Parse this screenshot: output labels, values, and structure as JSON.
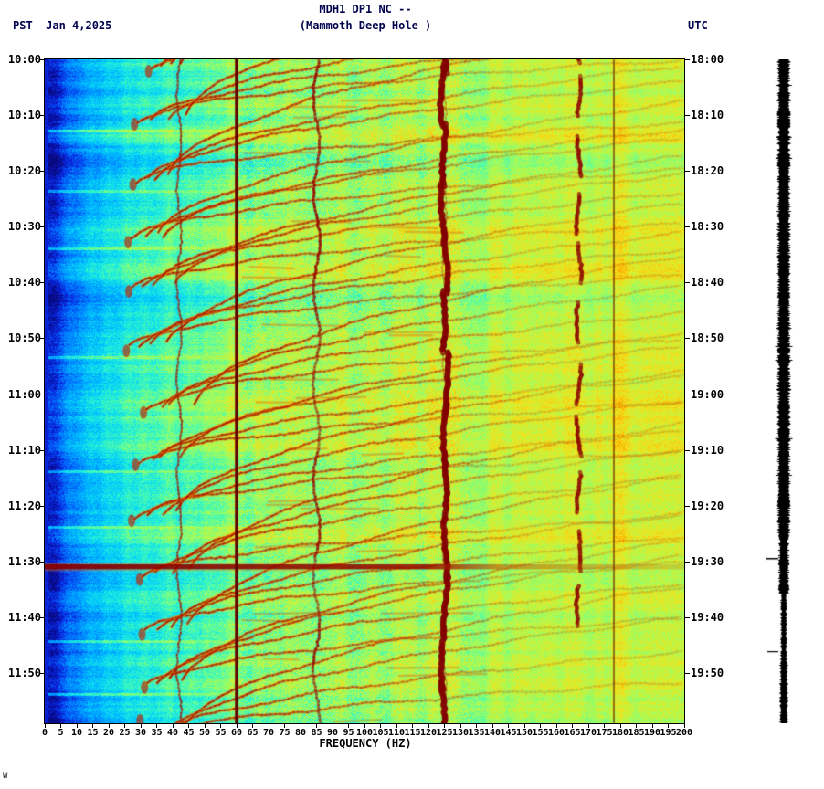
{
  "header": {
    "title_line1": "MDH1 DP1 NC --",
    "title_line2": "(Mammoth Deep Hole )",
    "left_label": "PST  Jan 4,2025",
    "right_label": "UTC"
  },
  "footer": {
    "watermark": "W"
  },
  "chart_data": {
    "type": "heatmap",
    "subtype": "seismic-spectrogram",
    "title": "MDH1 DP1 NC -- (Mammoth Deep Hole )",
    "xlabel": "FREQUENCY (HZ)",
    "x_min_hz": 0,
    "x_max_hz": 200,
    "x_tick_step_hz": 5,
    "x_ticks": [
      "0",
      "5",
      "10",
      "15",
      "20",
      "25",
      "30",
      "35",
      "40",
      "45",
      "50",
      "55",
      "60",
      "65",
      "70",
      "75",
      "80",
      "85",
      "90",
      "95",
      "100",
      "105",
      "110",
      "115",
      "120",
      "125",
      "130",
      "135",
      "140",
      "145",
      "150",
      "155",
      "160",
      "165",
      "170",
      "175",
      "180",
      "185",
      "190",
      "195",
      "200"
    ],
    "left_time_ticks": [
      "10:00",
      "10:10",
      "10:20",
      "10:30",
      "10:40",
      "10:50",
      "11:00",
      "11:10",
      "11:20",
      "11:30",
      "11:40",
      "11:50"
    ],
    "right_time_ticks": [
      "18:00",
      "18:10",
      "18:20",
      "18:30",
      "18:40",
      "18:50",
      "19:00",
      "19:10",
      "19:20",
      "19:30",
      "19:40",
      "19:50"
    ],
    "features": {
      "persistent_line_hz": 60,
      "secondary_line_hz": 178,
      "tremor_blob_columns_hz": [
        42,
        85,
        125,
        167
      ],
      "broadband_event_left_time": "11:31",
      "repeating_glide_period_min": 10
    },
    "colors": {
      "low_power": "#0820c8",
      "mid_power": "#00c8ff",
      "high_power": "#e0e832",
      "hot_power": "#8b0000",
      "frame": "#000000",
      "seismo_bar": "#000000",
      "text": "#000000",
      "title_text": "#00004d"
    }
  }
}
